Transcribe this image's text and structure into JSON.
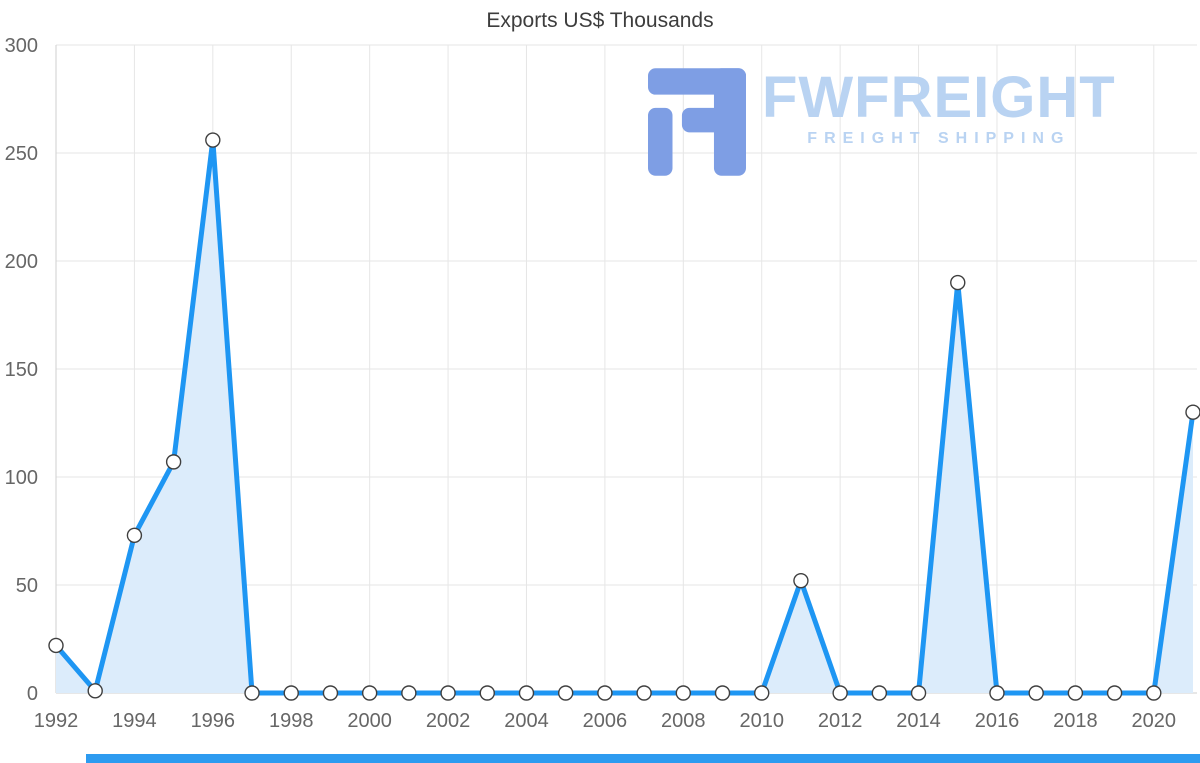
{
  "title": "Exports US$ Thousands",
  "logo": {
    "brand": "FWFREIGHT",
    "tagline": "FREIGHT SHIPPING",
    "glyph_color": "#7e9ee4",
    "text_color": "#b9d3f2"
  },
  "colors": {
    "line": "#1e96f3",
    "fill": "#dcecfb",
    "marker_fill": "#ffffff",
    "marker_stroke": "#3f3f3f",
    "grid": "#e6e6e6",
    "axis": "#cfcfcf",
    "tick_text": "#666666",
    "title_text": "#3d3d3d",
    "scrollbar": "#2d9bf0"
  },
  "chart_data": {
    "type": "area",
    "title": "Exports US$ Thousands",
    "x": [
      1992,
      1993,
      1994,
      1995,
      1996,
      1997,
      1998,
      1999,
      2000,
      2001,
      2002,
      2003,
      2004,
      2005,
      2006,
      2007,
      2008,
      2009,
      2010,
      2011,
      2012,
      2013,
      2014,
      2015,
      2016,
      2017,
      2018,
      2019,
      2020,
      2021
    ],
    "values": [
      22,
      1,
      73,
      107,
      256,
      0,
      0,
      0,
      0,
      0,
      0,
      0,
      0,
      0,
      0,
      0,
      0,
      0,
      0,
      52,
      0,
      0,
      0,
      190,
      0,
      0,
      0,
      0,
      0,
      130
    ],
    "ylim": [
      0,
      300
    ],
    "yticks": [
      0,
      50,
      100,
      150,
      200,
      250,
      300
    ],
    "xtick_labels": [
      "1992",
      "1994",
      "1996",
      "1998",
      "2000",
      "2002",
      "2004",
      "2006",
      "2008",
      "2010",
      "2012",
      "2014",
      "2016",
      "2018",
      "2020"
    ],
    "grid": true,
    "legend": false,
    "xlabel": "",
    "ylabel": ""
  }
}
